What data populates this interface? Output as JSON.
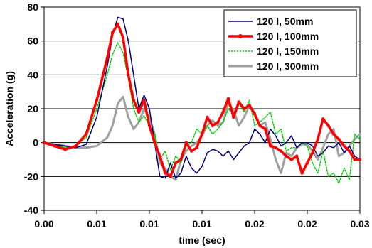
{
  "chart_data": {
    "type": "line",
    "title": "",
    "xlabel": "time (sec)",
    "ylabel": "Acceleration (g)",
    "xlim": [
      0.0,
      0.03
    ],
    "ylim": [
      -40,
      80
    ],
    "y_ticks": [
      -40,
      -20,
      0,
      20,
      40,
      60,
      80
    ],
    "y_tick_labels": [
      "-40",
      "-20",
      "0",
      "20",
      "40",
      "60",
      "80"
    ],
    "x_tick_values": [
      0.0,
      0.005,
      0.01,
      0.015,
      0.02,
      0.025,
      0.03
    ],
    "x_tick_labels": [
      "0.00",
      "0.01",
      "0.01",
      "0.01",
      "0.02",
      "0.02",
      "0.03"
    ],
    "grid": "horizontal",
    "legend_position": "top-right",
    "series": [
      {
        "name": "120 l, 50mm",
        "color": "#000080",
        "style": "thin-solid",
        "x": [
          0.0,
          0.001,
          0.002,
          0.003,
          0.004,
          0.005,
          0.006,
          0.0065,
          0.007,
          0.0075,
          0.008,
          0.0085,
          0.009,
          0.0095,
          0.01,
          0.0105,
          0.011,
          0.0115,
          0.012,
          0.0125,
          0.013,
          0.0135,
          0.014,
          0.0145,
          0.015,
          0.0155,
          0.016,
          0.0165,
          0.017,
          0.0175,
          0.018,
          0.0185,
          0.019,
          0.0195,
          0.02,
          0.0205,
          0.021,
          0.0215,
          0.022,
          0.0225,
          0.023,
          0.0235,
          0.024,
          0.0245,
          0.025,
          0.0255,
          0.026,
          0.0265,
          0.027,
          0.0275,
          0.028,
          0.0285,
          0.029,
          0.0295,
          0.03
        ],
        "values": [
          0,
          -1,
          -2,
          -3,
          -1,
          15,
          45,
          63,
          74,
          73,
          60,
          40,
          20,
          28,
          20,
          0,
          -20,
          -21,
          -12,
          -21,
          -18,
          -8,
          -15,
          -18,
          -14,
          -6,
          -4,
          -5,
          -8,
          -5,
          -10,
          -6,
          -2,
          0,
          8,
          5,
          0,
          8,
          4,
          -2,
          0,
          4,
          -3,
          0,
          0,
          -2,
          -8,
          -6,
          -2,
          -3,
          0,
          -6,
          -2,
          -8,
          -10
        ]
      },
      {
        "name": "120 l, 100mm",
        "color": "#ff0000",
        "style": "thick-solid-markers",
        "x": [
          0.0,
          0.001,
          0.002,
          0.003,
          0.004,
          0.005,
          0.006,
          0.0065,
          0.007,
          0.0075,
          0.008,
          0.0085,
          0.009,
          0.0095,
          0.01,
          0.0105,
          0.011,
          0.0115,
          0.012,
          0.0125,
          0.013,
          0.0135,
          0.014,
          0.0145,
          0.015,
          0.0155,
          0.016,
          0.0165,
          0.017,
          0.0175,
          0.018,
          0.0185,
          0.019,
          0.0195,
          0.02,
          0.0205,
          0.021,
          0.0215,
          0.022,
          0.0225,
          0.023,
          0.0235,
          0.024,
          0.0245,
          0.025,
          0.0255,
          0.026,
          0.0265,
          0.027,
          0.0275,
          0.028,
          0.0285,
          0.029,
          0.0295,
          0.03
        ],
        "values": [
          0,
          -2,
          -4,
          -2,
          5,
          25,
          50,
          65,
          70,
          62,
          40,
          25,
          18,
          25,
          10,
          0,
          -8,
          -18,
          -20,
          -12,
          -10,
          0,
          -5,
          -3,
          5,
          15,
          10,
          12,
          18,
          26,
          15,
          24,
          20,
          22,
          17,
          10,
          8,
          -2,
          -3,
          -5,
          -8,
          -10,
          -8,
          -18,
          -12,
          -6,
          2,
          14,
          10,
          5,
          2,
          -2,
          -5,
          -10,
          -10
        ]
      },
      {
        "name": "120 l, 150mm",
        "color": "#00cc00",
        "style": "dotted",
        "x": [
          0.0,
          0.001,
          0.002,
          0.003,
          0.004,
          0.005,
          0.006,
          0.0065,
          0.007,
          0.0075,
          0.008,
          0.0085,
          0.009,
          0.0095,
          0.01,
          0.0105,
          0.011,
          0.0115,
          0.012,
          0.0125,
          0.013,
          0.0135,
          0.014,
          0.0145,
          0.015,
          0.0155,
          0.016,
          0.0165,
          0.017,
          0.0175,
          0.018,
          0.0185,
          0.019,
          0.0195,
          0.02,
          0.0205,
          0.021,
          0.0215,
          0.022,
          0.0225,
          0.023,
          0.0235,
          0.024,
          0.0245,
          0.025,
          0.0255,
          0.026,
          0.0265,
          0.027,
          0.0275,
          0.028,
          0.0285,
          0.029,
          0.0295,
          0.03
        ],
        "values": [
          0,
          -1,
          -3,
          -2,
          3,
          20,
          40,
          52,
          59,
          53,
          38,
          20,
          12,
          16,
          10,
          5,
          -10,
          -5,
          -16,
          -8,
          -12,
          -2,
          0,
          8,
          5,
          10,
          5,
          8,
          12,
          20,
          17,
          23,
          18,
          25,
          10,
          12,
          15,
          18,
          5,
          8,
          -5,
          -3,
          -3,
          0,
          -2,
          -12,
          -18,
          -5,
          -20,
          -18,
          -24,
          -15,
          -22,
          5,
          2
        ]
      },
      {
        "name": "120 l, 300mm",
        "color": "#a0a0a0",
        "style": "thick-solid",
        "x": [
          0.0,
          0.001,
          0.002,
          0.003,
          0.004,
          0.005,
          0.006,
          0.0065,
          0.007,
          0.0075,
          0.008,
          0.0085,
          0.009,
          0.0095,
          0.01,
          0.0105,
          0.011,
          0.0115,
          0.012,
          0.0125,
          0.013,
          0.0135,
          0.014,
          0.0145,
          0.015,
          0.0155,
          0.016,
          0.0165,
          0.017,
          0.0175,
          0.018,
          0.0185,
          0.019,
          0.0195,
          0.02,
          0.0205,
          0.021,
          0.0215,
          0.022,
          0.0225,
          0.023,
          0.0235,
          0.024,
          0.0245,
          0.025,
          0.0255,
          0.026,
          0.0265,
          0.027,
          0.0275,
          0.028,
          0.0285,
          0.029,
          0.0295,
          0.03
        ],
        "values": [
          0,
          -1,
          -2,
          -3,
          -3,
          -2,
          3,
          10,
          23,
          27,
          15,
          8,
          12,
          20,
          15,
          5,
          -12,
          -15,
          -20,
          -22,
          -10,
          -5,
          -2,
          0,
          4,
          10,
          13,
          10,
          12,
          23,
          19,
          10,
          15,
          22,
          16,
          10,
          12,
          2,
          -10,
          -18,
          -6,
          -8,
          -3,
          -1,
          -1,
          -5,
          -10,
          -3,
          5,
          8,
          -8,
          -6,
          -2,
          2,
          5
        ]
      }
    ]
  }
}
